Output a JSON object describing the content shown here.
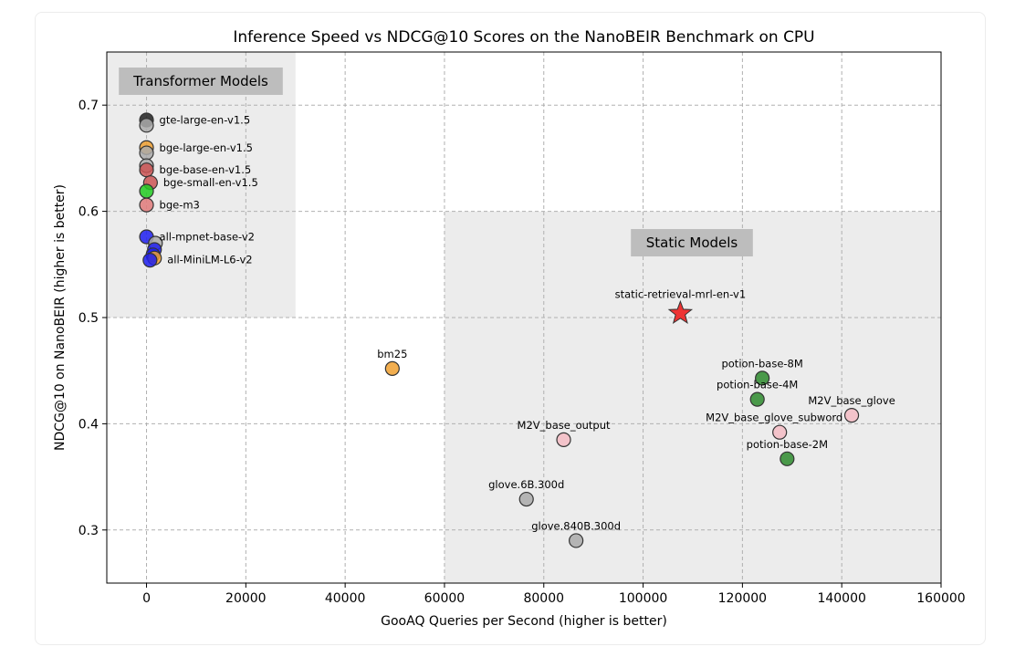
{
  "chart_data": {
    "type": "scatter",
    "title": "Inference Speed vs NDCG@10 Scores on the NanoBEIR Benchmark on CPU",
    "xlabel": "GooAQ Queries per Second (higher is better)",
    "ylabel": "NDCG@10 on NanoBEIR (higher is better)",
    "xlim": [
      -8000,
      160000
    ],
    "ylim": [
      0.25,
      0.75
    ],
    "xticks": [
      0,
      20000,
      40000,
      60000,
      80000,
      100000,
      120000,
      140000,
      160000
    ],
    "yticks": [
      0.3,
      0.4,
      0.5,
      0.6,
      0.7
    ],
    "xtick_labels": [
      "0",
      "20000",
      "40000",
      "60000",
      "80000",
      "100000",
      "120000",
      "140000",
      "160000"
    ],
    "ytick_labels": [
      "0.3",
      "0.4",
      "0.5",
      "0.6",
      "0.7"
    ],
    "grid": true,
    "regions": [
      {
        "label": "Transformer Models",
        "x": [
          -8000,
          30000
        ],
        "y": [
          0.5,
          0.75
        ]
      },
      {
        "label": "Static Models",
        "x": [
          60000,
          160000
        ],
        "y": [
          0.25,
          0.6
        ]
      }
    ],
    "points": [
      {
        "name": "gte-large-en-v1.5",
        "x": 0,
        "y": 0.686,
        "color": "#222222",
        "marker": "circle"
      },
      {
        "name": "",
        "x": 0,
        "y": 0.681,
        "color": "#aaaaaa",
        "marker": "circle"
      },
      {
        "name": "bge-large-en-v1.5",
        "x": 0,
        "y": 0.66,
        "color": "#f0a030",
        "marker": "circle"
      },
      {
        "name": "",
        "x": 0,
        "y": 0.655,
        "color": "#aaaaaa",
        "marker": "circle"
      },
      {
        "name": "",
        "x": 0,
        "y": 0.643,
        "color": "#aaaaaa",
        "marker": "circle"
      },
      {
        "name": "bge-base-en-v1.5",
        "x": 0,
        "y": 0.639,
        "color": "#cc5555",
        "marker": "circle"
      },
      {
        "name": "bge-small-en-v1.5",
        "x": 800,
        "y": 0.627,
        "color": "#cc5555",
        "marker": "circle"
      },
      {
        "name": "",
        "x": 0,
        "y": 0.619,
        "color": "#22cc22",
        "marker": "circle"
      },
      {
        "name": "bge-m3",
        "x": 0,
        "y": 0.606,
        "color": "#e07a7a",
        "marker": "circle"
      },
      {
        "name": "all-mpnet-base-v2",
        "x": 0,
        "y": 0.576,
        "color": "#1e1ef0",
        "marker": "circle"
      },
      {
        "name": "",
        "x": 1800,
        "y": 0.57,
        "color": "#aaaaaa",
        "marker": "circle"
      },
      {
        "name": "all-MiniLM-L6-v2",
        "x": 1600,
        "y": 0.564,
        "color": "#1e1ef0",
        "marker": "circle"
      },
      {
        "name": "",
        "x": 1300,
        "y": 0.559,
        "color": "#1e1ef0",
        "marker": "circle"
      },
      {
        "name": "",
        "x": 1600,
        "y": 0.556,
        "color": "#f0a030",
        "marker": "circle"
      },
      {
        "name": "",
        "x": 700,
        "y": 0.554,
        "color": "#1e1ef0",
        "marker": "circle"
      },
      {
        "name": "bm25",
        "x": 49500,
        "y": 0.452,
        "color": "#f0a030",
        "marker": "circle"
      },
      {
        "name": "static-retrieval-mrl-en-v1",
        "x": 107500,
        "y": 0.504,
        "color": "#ee3333",
        "marker": "star"
      },
      {
        "name": "potion-base-8M",
        "x": 124000,
        "y": 0.443,
        "color": "#2e8b2e",
        "marker": "circle"
      },
      {
        "name": "potion-base-4M",
        "x": 123000,
        "y": 0.423,
        "color": "#2e8b2e",
        "marker": "circle"
      },
      {
        "name": "M2V_base_glove",
        "x": 142000,
        "y": 0.408,
        "color": "#f4bcc4",
        "marker": "circle"
      },
      {
        "name": "M2V_base_glove_subword",
        "x": 127500,
        "y": 0.392,
        "color": "#f4bcc4",
        "marker": "circle"
      },
      {
        "name": "potion-base-2M",
        "x": 129000,
        "y": 0.367,
        "color": "#2e8b2e",
        "marker": "circle"
      },
      {
        "name": "M2V_base_output",
        "x": 84000,
        "y": 0.385,
        "color": "#f4bcc4",
        "marker": "circle"
      },
      {
        "name": "glove.6B.300d",
        "x": 76500,
        "y": 0.329,
        "color": "#aaaaaa",
        "marker": "circle"
      },
      {
        "name": "glove.840B.300d",
        "x": 86500,
        "y": 0.29,
        "color": "#aaaaaa",
        "marker": "circle"
      }
    ]
  }
}
